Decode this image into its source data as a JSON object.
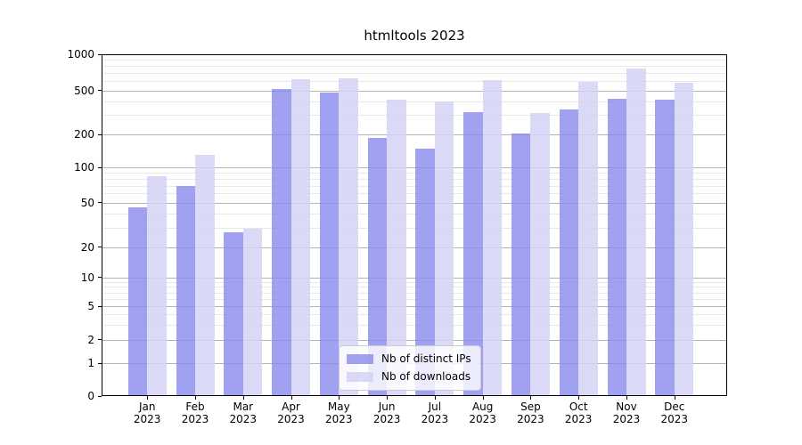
{
  "figure": {
    "title": "htmltools 2023"
  },
  "chart_data": {
    "type": "bar",
    "title": "htmltools 2023",
    "categories": [
      "Jan",
      "Feb",
      "Mar",
      "Apr",
      "May",
      "Jun",
      "Jul",
      "Aug",
      "Sep",
      "Oct",
      "Nov",
      "Dec"
    ],
    "category_year": "2023",
    "series": [
      {
        "name": "Nb of distinct IPs",
        "color": "#8A8AED",
        "alpha": 0.8,
        "values": [
          45,
          70,
          27,
          515,
          480,
          185,
          150,
          320,
          205,
          340,
          420,
          410
        ]
      },
      {
        "name": "Nb of downloads",
        "color": "#D3D3F6",
        "alpha": 0.85,
        "values": [
          85,
          130,
          29,
          620,
          630,
          410,
          400,
          610,
          315,
          590,
          760,
          580
        ]
      }
    ],
    "y_axis": {
      "scale": "symlog",
      "ylim": [
        0,
        1000
      ],
      "ticks": [
        0,
        1,
        2,
        5,
        10,
        20,
        50,
        100,
        200,
        500,
        1000
      ],
      "minor_ticks": [
        3,
        4,
        6,
        7,
        8,
        9,
        30,
        40,
        60,
        70,
        80,
        90,
        300,
        400,
        600,
        700,
        800,
        900
      ]
    },
    "grid": {
      "enabled": true,
      "major_color": "#B3B3B3",
      "minor_color": "#E8E8E8"
    },
    "legend": {
      "position": "lower center",
      "background": "#FFFFFF",
      "border_color": "#CCCCCC"
    },
    "spine_color": "#000000"
  }
}
